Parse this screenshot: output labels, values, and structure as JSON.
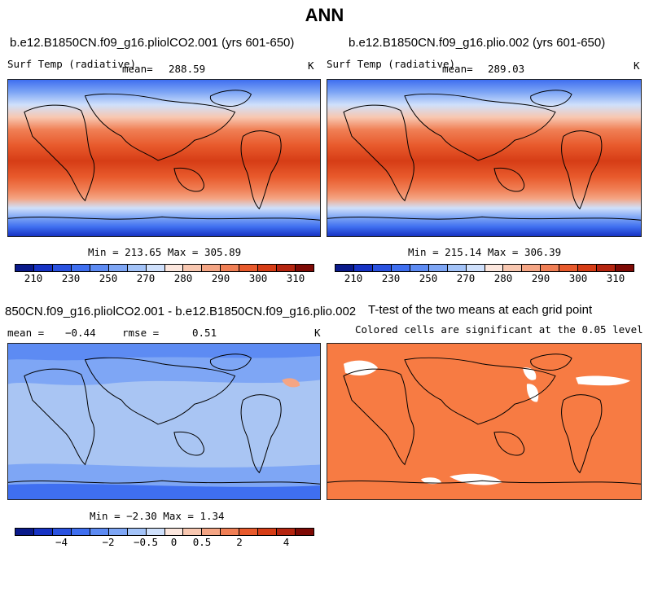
{
  "title": "ANN",
  "panels": {
    "top_left": {
      "case": "b.e12.B1850CN.f09_g16.pliolCO2.001 (yrs 601-650)",
      "variable": "Surf Temp (radiative)",
      "mean_label": "mean=",
      "mean": "288.59",
      "units": "K",
      "minmax": "Min = 213.65 Max = 305.89"
    },
    "top_right": {
      "case": "b.e12.B1850CN.f09_g16.plio.002 (yrs 601-650)",
      "variable": "Surf Temp (radiative)",
      "mean_label": "mean=",
      "mean": "289.03",
      "units": "K",
      "minmax": "Min = 215.14 Max = 306.39"
    },
    "bottom_left": {
      "case": "850CN.f09_g16.pliolCO2.001 - b.e12.B1850CN.f09_g16.plio.002",
      "mean_label": "mean =",
      "mean": "−0.44",
      "rmse_label": "rmse =",
      "rmse": "0.51",
      "units": "K",
      "minmax": "Min = −2.30 Max = 1.34"
    },
    "bottom_right": {
      "title": "T-test of the two means at each grid point",
      "subtitle": "Colored cells are significant at the 0.05 level"
    }
  },
  "colorbars": {
    "absolute": {
      "colors": [
        "#0a1a8a",
        "#1733c4",
        "#2a52e0",
        "#3f6ff0",
        "#5d8bf3",
        "#7ea6f5",
        "#a3c3f8",
        "#cfe0fb",
        "#fbe6dd",
        "#f8c7b0",
        "#f4a584",
        "#f07f55",
        "#e85a2c",
        "#d63d16",
        "#b52510",
        "#7e0a05"
      ],
      "tick_labels": [
        "210",
        "230",
        "250",
        "270",
        "280",
        "290",
        "300",
        "310"
      ]
    },
    "difference": {
      "colors": [
        "#0a1a8a",
        "#1733c4",
        "#2a52e0",
        "#3f6ff0",
        "#5d8bf3",
        "#7ea6f5",
        "#a3c3f8",
        "#cfe0fb",
        "#fbe6dd",
        "#f8c7b0",
        "#f4a584",
        "#f07f55",
        "#e85a2c",
        "#d63d16",
        "#b52510",
        "#7e0a05"
      ],
      "tick_labels": [
        "−4",
        "−2",
        "−0.5",
        "0",
        "0.5",
        "2",
        "4"
      ]
    }
  },
  "colors": {
    "ttest_fill": "#f77b43",
    "diff_base": "#a9c5f3"
  }
}
